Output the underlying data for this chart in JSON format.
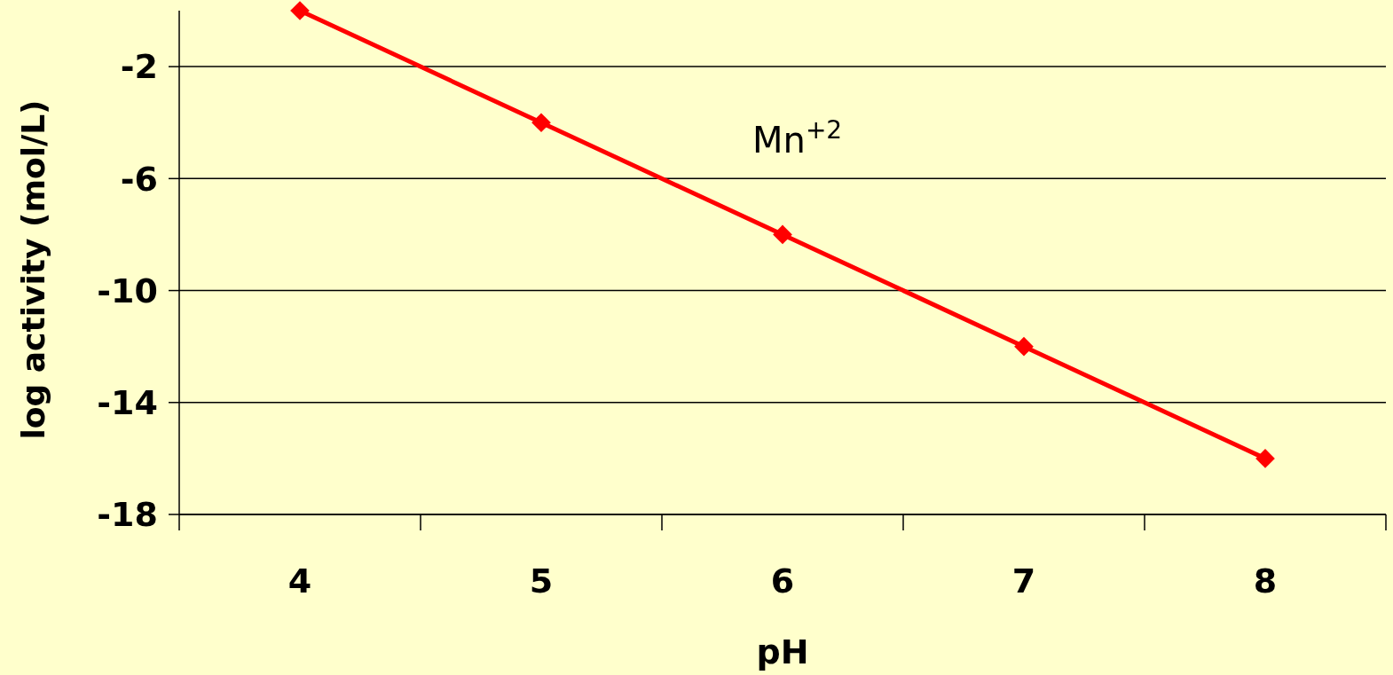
{
  "chart_data": {
    "type": "line",
    "xlabel": "pH",
    "ylabel": "log activity (mol/L)",
    "categories": [
      "4",
      "5",
      "6",
      "7",
      "8"
    ],
    "series": [
      {
        "color": "#ff0000",
        "values": [
          0,
          -4,
          -8,
          -12,
          -16
        ]
      }
    ],
    "ylim": [
      -18,
      0
    ],
    "yticks": [
      -18,
      -14,
      -10,
      -6,
      -2
    ],
    "grid": "y",
    "marker": "diamond",
    "line_style": "solid",
    "annotations": [
      "Mn$^{+2}$"
    ]
  }
}
